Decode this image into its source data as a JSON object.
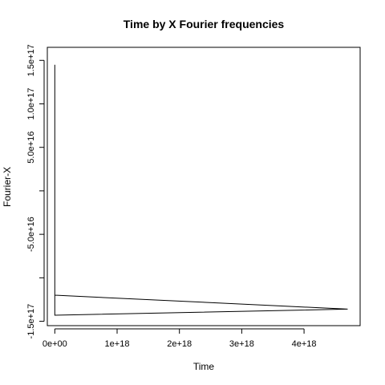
{
  "chart_data": {
    "type": "line",
    "title": "Time by X Fourier frequencies",
    "xlabel": "Time",
    "ylabel": "Fourier-X",
    "xlim": [
      -1.2e+17,
      4.9e+18
    ],
    "ylim": [
      -1.55e+17,
      1.65e+17
    ],
    "xticks": [
      {
        "value": 0,
        "label": "0e+00"
      },
      {
        "value": 1e+18,
        "label": "1e+18"
      },
      {
        "value": 2e+18,
        "label": "2e+18"
      },
      {
        "value": 3e+18,
        "label": "3e+18"
      },
      {
        "value": 4e+18,
        "label": "4e+18"
      }
    ],
    "yticks": [
      {
        "value": -1.5e+17,
        "label": "-1.5e+17"
      },
      {
        "value": -1e+17,
        "label": ""
      },
      {
        "value": -5e+16,
        "label": "-5.0e+16"
      },
      {
        "value": 0,
        "label": ""
      },
      {
        "value": 5e+16,
        "label": "5.0e+16"
      },
      {
        "value": 1e+17,
        "label": "1.0e+17"
      },
      {
        "value": 1.5e+17,
        "label": "1.5e+17"
      }
    ],
    "series": [
      {
        "x": [
          0,
          0,
          4.7e+18,
          0
        ],
        "y": [
          1.45e+17,
          -1.43e+17,
          -1.36e+17,
          -1.2e+17
        ]
      }
    ],
    "grid": false,
    "legend": "none"
  }
}
